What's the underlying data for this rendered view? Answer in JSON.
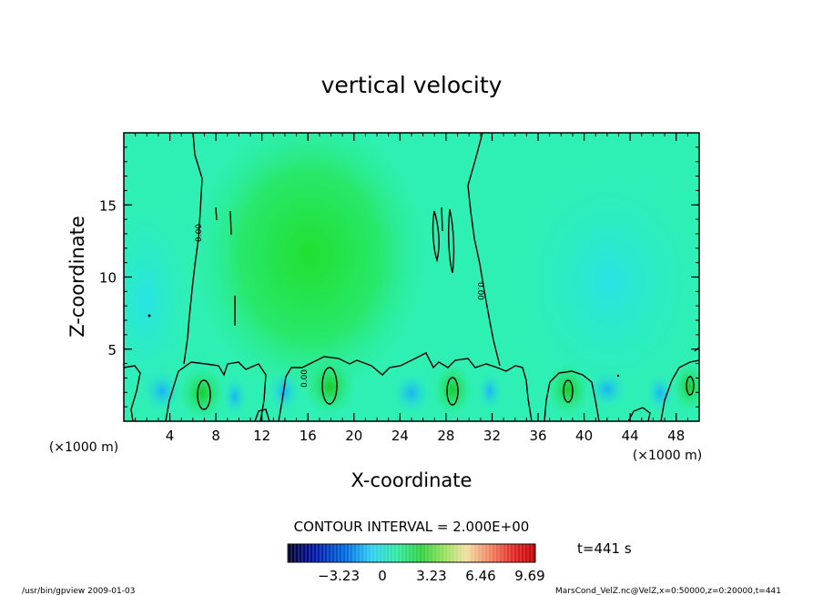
{
  "chart_data": {
    "type": "heatmap",
    "title": "vertical velocity",
    "xlabel": "X-coordinate",
    "ylabel": "Z-coordinate",
    "x_unit": "(×1000 m)",
    "xlim": [
      0,
      50
    ],
    "ylim": [
      0,
      20
    ],
    "xticks": [
      4,
      8,
      12,
      16,
      20,
      24,
      28,
      32,
      36,
      40,
      44,
      48
    ],
    "yticks": [
      5,
      10,
      15
    ],
    "contour_label": "0.00",
    "contour_interval_text": "CONTOUR INTERVAL = 2.000E+00",
    "colorbar_ticks": [
      "−3.23",
      "0",
      "3.23",
      "6.46",
      "9.69"
    ],
    "time_label": "t=441 s",
    "footer_left": "/usr/bin/gpview  2009-01-03",
    "footer_right": "MarsCond_VelZ.nc@VelZ,x=0:50000,z=0:20000,t=441"
  },
  "colors": {
    "background_field": "#2ef0b4",
    "positive_core": "#22e03a",
    "negative_core": "#1ec8f8"
  }
}
